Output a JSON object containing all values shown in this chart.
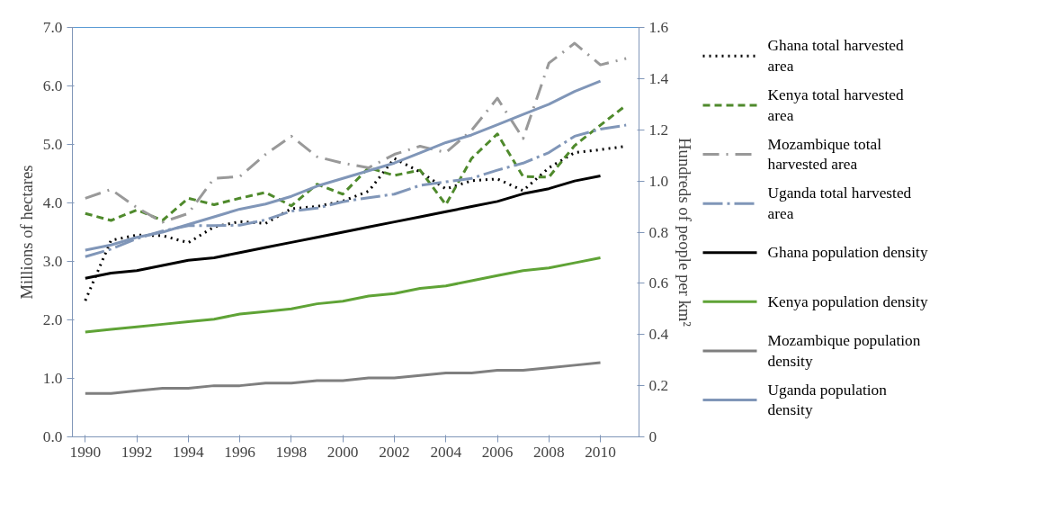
{
  "chart_data": {
    "type": "line",
    "ylabel": "Millions of hectares",
    "y2label": "Hundreds of people per km²",
    "x": [
      1990,
      1991,
      1992,
      1993,
      1994,
      1995,
      1996,
      1997,
      1998,
      1999,
      2000,
      2001,
      2002,
      2003,
      2004,
      2005,
      2006,
      2007,
      2008,
      2009,
      2010,
      2011
    ],
    "xlim": [
      1989.5,
      2011.5
    ],
    "xticks": [
      1990,
      1992,
      1994,
      1996,
      1998,
      2000,
      2002,
      2004,
      2006,
      2008,
      2010
    ],
    "ylim": [
      0,
      7
    ],
    "yticks": [
      {
        "value": 0,
        "label": "0.0"
      },
      {
        "value": 1,
        "label": "1.0"
      },
      {
        "value": 2,
        "label": "2.0"
      },
      {
        "value": 3,
        "label": "3.0"
      },
      {
        "value": 4,
        "label": "4.0"
      },
      {
        "value": 5,
        "label": "5.0"
      },
      {
        "value": 6,
        "label": "6.0"
      },
      {
        "value": 7,
        "label": "7.0"
      }
    ],
    "y2lim": [
      0,
      1.6
    ],
    "y2ticks": [
      0,
      0.2,
      0.4,
      0.6,
      0.8,
      {
        "value": 1,
        "label": "1.0"
      },
      1.2,
      1.4,
      1.6
    ],
    "legend": "right",
    "grid": false,
    "series": [
      {
        "name": "Ghana total harvested area",
        "color": "#000000",
        "line_style": "dotted",
        "values": [
          2.33,
          3.36,
          3.45,
          3.44,
          3.32,
          3.59,
          3.68,
          3.65,
          3.9,
          3.94,
          4.03,
          4.2,
          4.76,
          4.53,
          4.24,
          4.38,
          4.41,
          4.21,
          4.6,
          4.86,
          4.91,
          4.97
        ]
      },
      {
        "name": "Kenya total harvested area",
        "color": "#4f8a2c",
        "line_style": "dashed",
        "values": [
          3.82,
          3.7,
          3.88,
          3.7,
          4.08,
          3.97,
          4.08,
          4.18,
          3.95,
          4.32,
          4.15,
          4.6,
          4.47,
          4.56,
          3.97,
          4.76,
          5.18,
          4.45,
          4.44,
          4.98,
          5.33,
          5.67
        ]
      },
      {
        "name": "Mozambique total harvested area",
        "color": "#999999",
        "line_style": "dashdot",
        "values": [
          4.08,
          4.23,
          3.92,
          3.67,
          3.82,
          4.42,
          4.45,
          4.83,
          5.14,
          4.79,
          4.68,
          4.6,
          4.83,
          4.97,
          4.86,
          5.24,
          5.79,
          5.1,
          6.39,
          6.73,
          6.36,
          6.47
        ]
      },
      {
        "name": "Uganda total harvested area",
        "color": "#8096b8",
        "line_style": "longdashdot",
        "values": [
          3.08,
          3.21,
          3.39,
          3.52,
          3.61,
          3.61,
          3.62,
          3.71,
          3.86,
          3.91,
          4.02,
          4.09,
          4.15,
          4.3,
          4.36,
          4.42,
          4.56,
          4.68,
          4.86,
          5.14,
          5.26,
          5.33
        ]
      },
      {
        "name": "Ghana population density",
        "color": "#000000",
        "line_style": "solid",
        "axis": "y2",
        "values": [
          0.62,
          0.64,
          0.65,
          0.67,
          0.69,
          0.7,
          0.72,
          0.74,
          0.76,
          0.78,
          0.8,
          0.82,
          0.84,
          0.86,
          0.88,
          0.9,
          0.92,
          0.95,
          0.97,
          1.0,
          1.02,
          null
        ]
      },
      {
        "name": "Kenya population density",
        "color": "#5fa336",
        "line_style": "solid",
        "axis": "y2",
        "values": [
          0.41,
          0.42,
          0.43,
          0.44,
          0.45,
          0.46,
          0.48,
          0.49,
          0.5,
          0.52,
          0.53,
          0.55,
          0.56,
          0.58,
          0.59,
          0.61,
          0.63,
          0.65,
          0.66,
          0.68,
          0.7,
          null
        ]
      },
      {
        "name": "Mozambique population density",
        "color": "#7f7f7f",
        "line_style": "solid",
        "axis": "y2",
        "values": [
          0.17,
          0.17,
          0.18,
          0.19,
          0.19,
          0.2,
          0.2,
          0.21,
          0.21,
          0.22,
          0.22,
          0.23,
          0.23,
          0.24,
          0.25,
          0.25,
          0.26,
          0.26,
          0.27,
          0.28,
          0.29,
          null
        ]
      },
      {
        "name": "Uganda population density",
        "color": "#8096b8",
        "line_style": "solid",
        "axis": "y2",
        "values": [
          0.73,
          0.75,
          0.78,
          0.8,
          0.83,
          0.86,
          0.89,
          0.91,
          0.94,
          0.98,
          1.01,
          1.04,
          1.07,
          1.11,
          1.15,
          1.18,
          1.22,
          1.26,
          1.3,
          1.35,
          1.39,
          null
        ]
      }
    ]
  }
}
